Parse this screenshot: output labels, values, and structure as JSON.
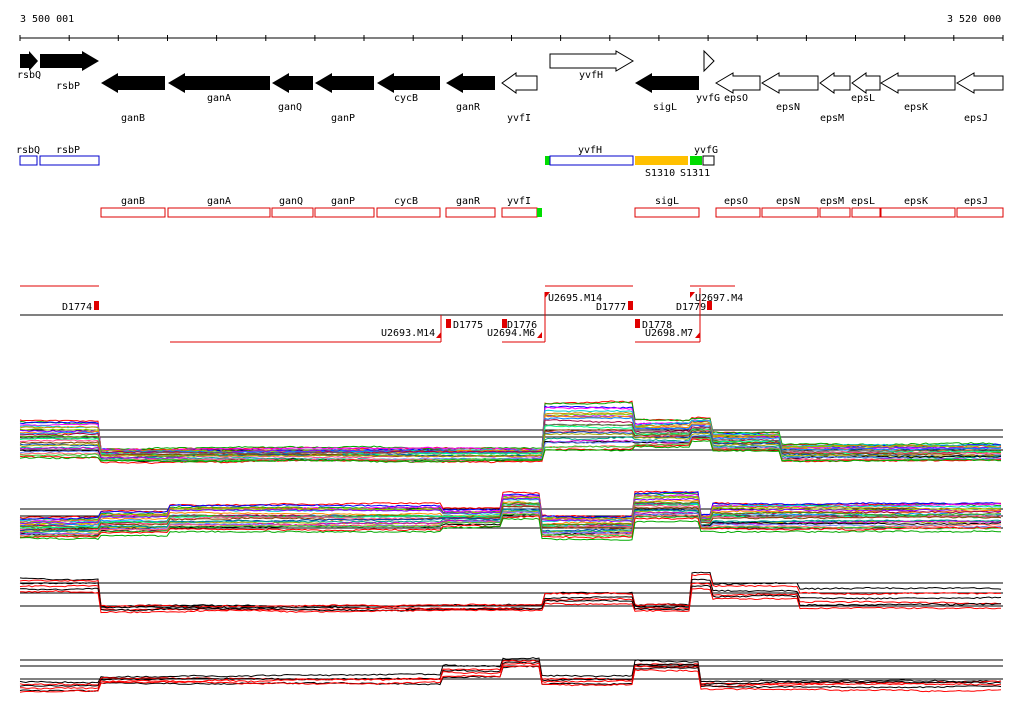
{
  "coordinates": {
    "start": "3 500 001",
    "end": "3 520 000"
  },
  "genes": {
    "forward": [
      "rsbQ",
      "rsbP",
      "yvfH",
      "yvfG"
    ],
    "reverse": [
      "ganB",
      "ganA",
      "ganQ",
      "ganP",
      "cycB",
      "ganR",
      "yvfI",
      "sigL",
      "epsO",
      "epsN",
      "epsM",
      "epsL",
      "epsK",
      "epsJ"
    ]
  },
  "annotation_rows": {
    "blue": [
      "rsbQ",
      "rsbP",
      "yvfH",
      "yvfG"
    ],
    "orange_labels": [
      "S1310",
      "S1311"
    ],
    "red": [
      "ganB",
      "ganA",
      "ganQ",
      "ganP",
      "cycB",
      "ganR",
      "yvfI",
      "sigL",
      "epsO",
      "epsN",
      "epsM",
      "epsL",
      "epsK",
      "epsJ"
    ]
  },
  "segments": {
    "labels": [
      "D1774",
      "U2693.M14",
      "D1775",
      "D1776",
      "U2694.M6",
      "U2695.M14",
      "D1777",
      "D1778",
      "U2698.M7",
      "D1779",
      "U2697.M4"
    ]
  },
  "colors": {
    "gene_fill": "#000000",
    "blue_box": "#0000cc",
    "red_box": "#dd0000",
    "orange": "#ffc000",
    "green": "#00dd00",
    "segment_red": "#e00000"
  },
  "tracks": [
    "expression-many-conditions-1",
    "expression-many-conditions-2",
    "expression-two-strains-1",
    "expression-two-strains-2"
  ]
}
